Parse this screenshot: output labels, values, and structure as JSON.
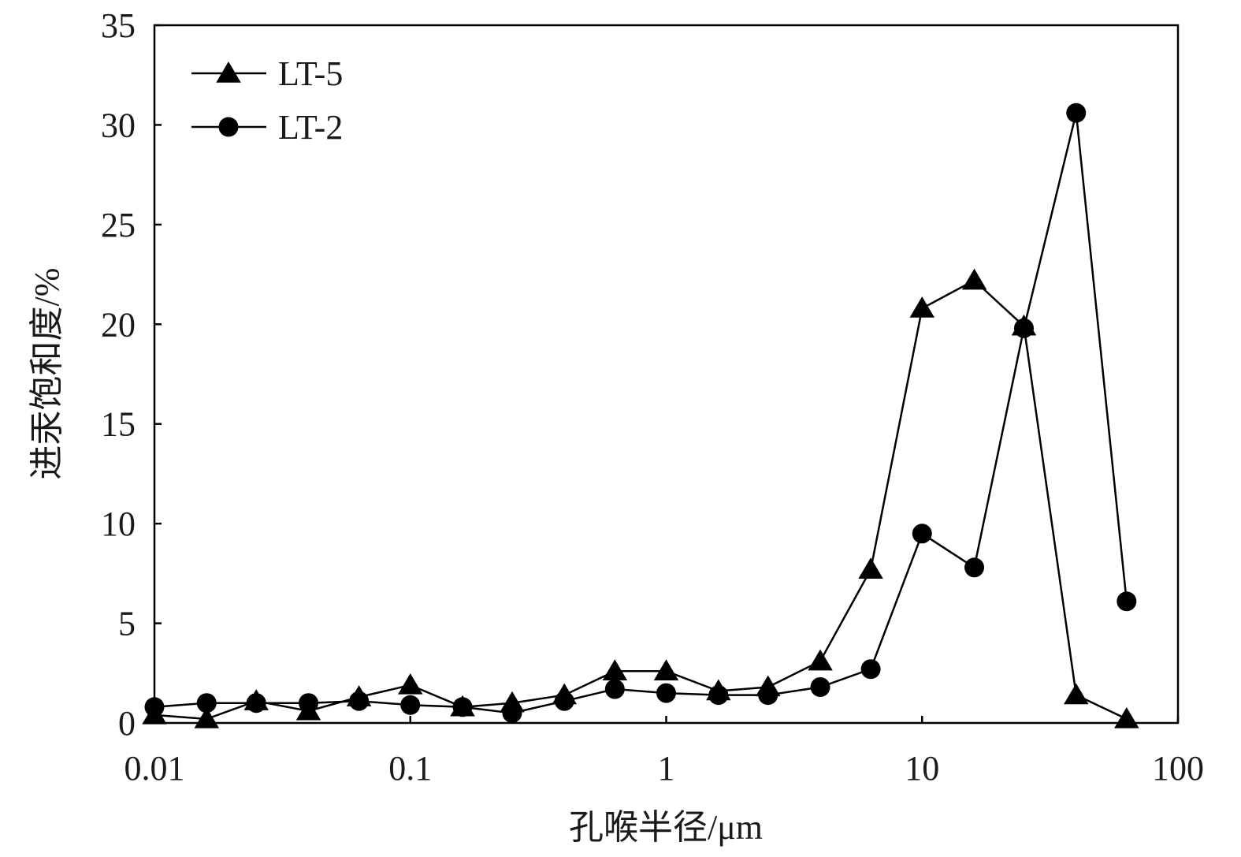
{
  "chart_data": {
    "type": "line",
    "xlabel": "孔喉半径/μm",
    "ylabel": "进汞饱和度/%",
    "xscale": "log",
    "xlim": [
      0.01,
      100
    ],
    "ylim": [
      0,
      35
    ],
    "xticks": [
      {
        "value": 0.01,
        "label": "0.01"
      },
      {
        "value": 0.1,
        "label": "0.1"
      },
      {
        "value": 1,
        "label": "1"
      },
      {
        "value": 10,
        "label": "10"
      },
      {
        "value": 100,
        "label": "100"
      }
    ],
    "yticks": [
      {
        "value": 0,
        "label": "0"
      },
      {
        "value": 5,
        "label": "5"
      },
      {
        "value": 10,
        "label": "10"
      },
      {
        "value": 15,
        "label": "15"
      },
      {
        "value": 20,
        "label": "20"
      },
      {
        "value": 25,
        "label": "25"
      },
      {
        "value": 30,
        "label": "30"
      },
      {
        "value": 35,
        "label": "35"
      }
    ],
    "grid": false,
    "legend_position": "top-left",
    "series": [
      {
        "name": "LT-5",
        "marker": "triangle",
        "color": "#000000",
        "x": [
          0.01,
          0.016,
          0.025,
          0.04,
          0.063,
          0.1,
          0.16,
          0.25,
          0.4,
          0.63,
          1,
          1.6,
          2.5,
          4,
          6.3,
          10,
          16,
          25,
          40,
          63
        ],
        "y": [
          0.4,
          0.2,
          1.1,
          0.6,
          1.3,
          1.9,
          0.8,
          1.0,
          1.4,
          2.6,
          2.6,
          1.6,
          1.8,
          3.1,
          7.7,
          20.8,
          22.2,
          19.9,
          1.4,
          0.2
        ]
      },
      {
        "name": "LT-2",
        "marker": "circle",
        "color": "#000000",
        "x": [
          0.01,
          0.016,
          0.025,
          0.04,
          0.063,
          0.1,
          0.16,
          0.25,
          0.4,
          0.63,
          1,
          1.6,
          2.5,
          4,
          6.3,
          10,
          16,
          25,
          40,
          63
        ],
        "y": [
          0.8,
          1.0,
          1.0,
          1.0,
          1.1,
          0.9,
          0.8,
          0.5,
          1.1,
          1.7,
          1.5,
          1.4,
          1.4,
          1.8,
          2.7,
          9.5,
          7.8,
          19.8,
          30.6,
          6.1
        ]
      }
    ]
  }
}
